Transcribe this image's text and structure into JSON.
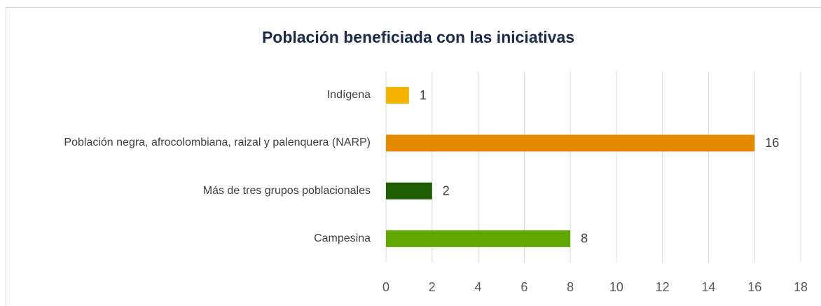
{
  "chart_data": {
    "type": "bar",
    "orientation": "horizontal",
    "title": "Población beneficiada con las iniciativas",
    "categories": [
      "Indígena",
      "Población negra, afrocolombiana, raizal y palenquera (NARP)",
      "Más de tres grupos poblacionales",
      "Campesina"
    ],
    "values": [
      1,
      16,
      2,
      8
    ],
    "colors": [
      "#f2b400",
      "#e58a00",
      "#1e5c00",
      "#5fa800"
    ],
    "xlim": [
      0,
      18
    ],
    "xticks": [
      0,
      2,
      4,
      6,
      8,
      10,
      12,
      14,
      16,
      18
    ],
    "grid": true
  }
}
